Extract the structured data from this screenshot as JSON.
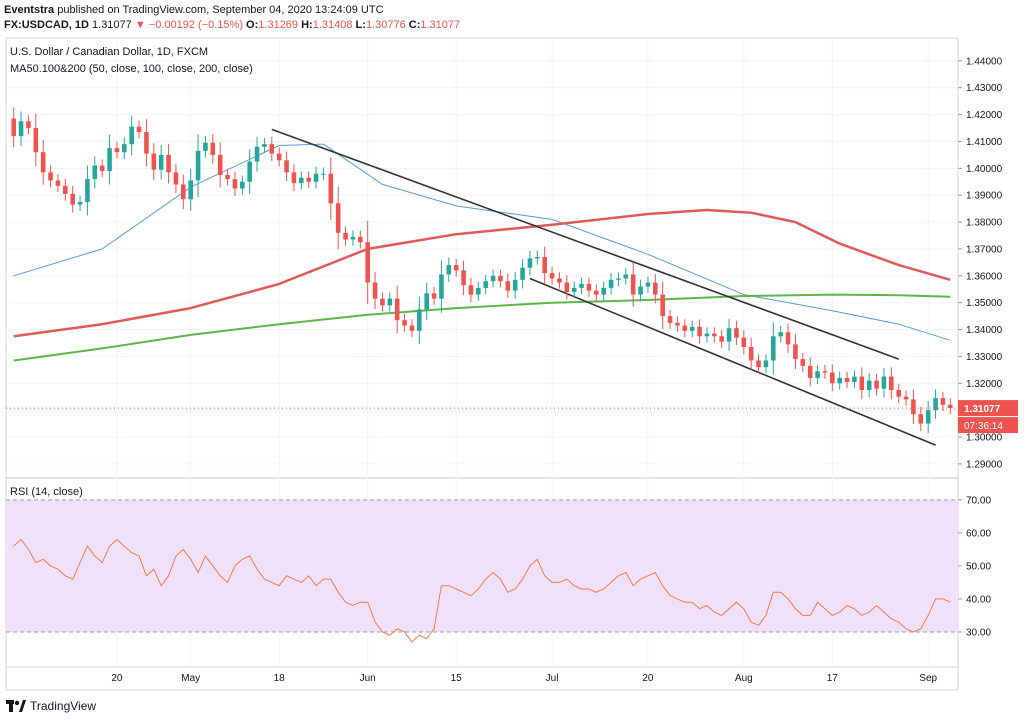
{
  "header": {
    "publisher": "Eventstra",
    "published_text": "published on TradingView.com, September 04, 2020 13:24:09 UTC",
    "symbol": "FX:USDCAD, 1D",
    "last": "1.31077",
    "change_arrow": "▼",
    "change": "−0.00192 (−0.15%)",
    "o_label": "O:",
    "o_value": "1.31269",
    "h_label": "H:",
    "h_value": "1.31408",
    "l_label": "L:",
    "l_value": "1.30776",
    "c_label": "C:",
    "c_value": "1.31077"
  },
  "legend": {
    "instrument": "U.S. Dollar / Canadian Dollar, 1D, FXCM",
    "ma": "MA50.100&200 (50, close, 100, close, 200, close)",
    "rsi": "RSI (14, close)"
  },
  "price_labels": {
    "last_price": "1.31077",
    "countdown": "07:36:14"
  },
  "footer": {
    "brand": "TradingView"
  },
  "colors": {
    "up": "#26a69a",
    "down": "#ef5350",
    "ma50": "#5b9bd5",
    "ma100": "#e05a5a",
    "ma200": "#5fb548",
    "rsi_line": "#f57c4f",
    "rsi_band": "#f0e1fb",
    "channel": "#333333"
  },
  "chart_data": [
    {
      "type": "candlestick",
      "title": "U.S. Dollar / Canadian Dollar, 1D, FXCM",
      "y_range": [
        1.2855,
        1.4485
      ],
      "y_ticks": [
        "1.44000",
        "1.43000",
        "1.42000",
        "1.41000",
        "1.40000",
        "1.39000",
        "1.38000",
        "1.37000",
        "1.36000",
        "1.35000",
        "1.34000",
        "1.33000",
        "1.32000",
        "1.31000",
        "1.30000",
        "1.29000"
      ],
      "x_ticks": [
        "20",
        "May",
        "18",
        "Jun",
        "15",
        "Jul",
        "20",
        "Aug",
        "17",
        "Sep"
      ],
      "x_tick_index": [
        14,
        24,
        36,
        48,
        60,
        73,
        86,
        99,
        111,
        124
      ],
      "bars": 128,
      "closes": [
        1.412,
        1.4175,
        1.415,
        1.406,
        1.3985,
        1.3955,
        1.3935,
        1.3905,
        1.3865,
        1.3875,
        1.396,
        1.401,
        1.399,
        1.4075,
        1.406,
        1.409,
        1.4155,
        1.4135,
        1.4055,
        1.3995,
        1.405,
        1.3985,
        1.394,
        1.3885,
        1.3955,
        1.4065,
        1.4095,
        1.405,
        1.3975,
        1.396,
        1.3925,
        1.395,
        1.4025,
        1.408,
        1.409,
        1.4055,
        1.403,
        1.3985,
        1.3945,
        1.3965,
        1.395,
        1.398,
        1.398,
        1.387,
        1.376,
        1.3735,
        1.3745,
        1.3725,
        1.3575,
        1.3515,
        1.349,
        1.3515,
        1.3435,
        1.3415,
        1.3395,
        1.3475,
        1.3535,
        1.3515,
        1.3605,
        1.364,
        1.362,
        1.3565,
        1.353,
        1.3555,
        1.358,
        1.36,
        1.358,
        1.3545,
        1.3585,
        1.363,
        1.3665,
        1.367,
        1.361,
        1.359,
        1.3575,
        1.354,
        1.3555,
        1.357,
        1.3545,
        1.353,
        1.3555,
        1.3585,
        1.359,
        1.3605,
        1.353,
        1.356,
        1.3575,
        1.353,
        1.345,
        1.3425,
        1.3415,
        1.3395,
        1.341,
        1.3375,
        1.3385,
        1.3375,
        1.3355,
        1.3405,
        1.337,
        1.3335,
        1.3285,
        1.326,
        1.3285,
        1.3375,
        1.339,
        1.3345,
        1.329,
        1.3265,
        1.322,
        1.3245,
        1.324,
        1.32,
        1.322,
        1.3205,
        1.3225,
        1.3175,
        1.321,
        1.318,
        1.3225,
        1.3175,
        1.315,
        1.314,
        1.3085,
        1.305,
        1.31,
        1.3145,
        1.312,
        1.3108
      ],
      "series": [
        {
          "name": "MA50",
          "points": [
            [
              0,
              1.36
            ],
            [
              12,
              1.37
            ],
            [
              24,
              1.393
            ],
            [
              36,
              1.4085
            ],
            [
              42,
              1.409
            ],
            [
              50,
              1.394
            ],
            [
              60,
              1.386
            ],
            [
              73,
              1.381
            ],
            [
              86,
              1.368
            ],
            [
              99,
              1.353
            ],
            [
              111,
              1.347
            ],
            [
              120,
              1.342
            ],
            [
              127,
              1.336
            ]
          ]
        },
        {
          "name": "MA100",
          "points": [
            [
              0,
              1.3375
            ],
            [
              12,
              1.342
            ],
            [
              24,
              1.348
            ],
            [
              36,
              1.357
            ],
            [
              48,
              1.37
            ],
            [
              60,
              1.3755
            ],
            [
              73,
              1.379
            ],
            [
              86,
              1.383
            ],
            [
              94,
              1.3845
            ],
            [
              100,
              1.3835
            ],
            [
              106,
              1.38
            ],
            [
              112,
              1.372
            ],
            [
              120,
              1.364
            ],
            [
              127,
              1.3585
            ]
          ]
        },
        {
          "name": "MA200",
          "points": [
            [
              0,
              1.3285
            ],
            [
              12,
              1.333
            ],
            [
              24,
              1.338
            ],
            [
              36,
              1.342
            ],
            [
              48,
              1.3455
            ],
            [
              60,
              1.348
            ],
            [
              73,
              1.35
            ],
            [
              86,
              1.351
            ],
            [
              99,
              1.3525
            ],
            [
              111,
              1.353
            ],
            [
              120,
              1.3528
            ],
            [
              127,
              1.3522
            ]
          ]
        },
        {
          "name": "Channel upper",
          "points": [
            [
              35,
              1.4145
            ],
            [
              120,
              1.329
            ]
          ]
        },
        {
          "name": "Channel lower",
          "points": [
            [
              70,
              1.359
            ],
            [
              125,
              1.297
            ]
          ]
        }
      ]
    },
    {
      "type": "line",
      "title": "RSI (14, close)",
      "y_range": [
        20,
        76
      ],
      "y_ticks": [
        "70.00",
        "60.00",
        "50.00",
        "40.00",
        "30.00"
      ],
      "band": [
        30,
        70
      ],
      "values": [
        56,
        58,
        55,
        51,
        52,
        50,
        49,
        47,
        46,
        51,
        56,
        53,
        51,
        56,
        58,
        56,
        54,
        53,
        47,
        49,
        44,
        47,
        53,
        55,
        52,
        48,
        53,
        50,
        47,
        45,
        50,
        52,
        53,
        49,
        46,
        45,
        44,
        47,
        46,
        45,
        47,
        44,
        46,
        46,
        42,
        39,
        38,
        39,
        39,
        33,
        30,
        29,
        31,
        30,
        27,
        29,
        28,
        31,
        44,
        44,
        43,
        42,
        41,
        43,
        46,
        48,
        46,
        42,
        43,
        46,
        50,
        52,
        47,
        45,
        45,
        46,
        44,
        43,
        43,
        42,
        43,
        45,
        47,
        48,
        44,
        46,
        47,
        48,
        44,
        41,
        40,
        39,
        39,
        37,
        38,
        36,
        35,
        37,
        39,
        37,
        33,
        32,
        35,
        42,
        42,
        40,
        37,
        35,
        35,
        39,
        37,
        35,
        36,
        38,
        37,
        35,
        36,
        38,
        36,
        34,
        33,
        31,
        30,
        31,
        35,
        40,
        40,
        39
      ]
    }
  ]
}
